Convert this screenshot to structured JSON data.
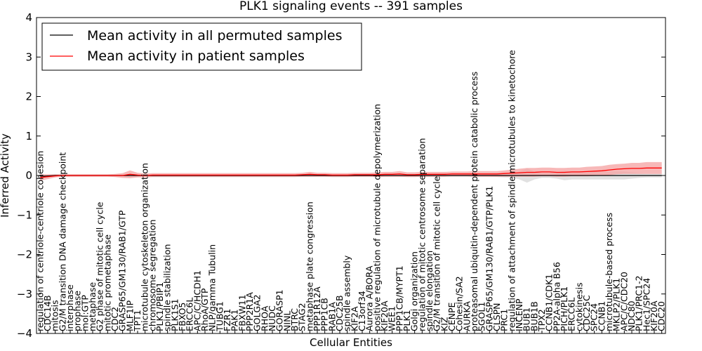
{
  "chart_data": {
    "type": "line",
    "title": "PLK1 signaling events -- 391 samples",
    "xlabel": "Cellular Entities",
    "ylabel": "Inferred Activity",
    "ylim": [
      -4,
      4
    ],
    "yticks": [
      "4",
      "3",
      "2",
      "1",
      "0",
      "−1",
      "−2",
      "−3",
      "−4"
    ],
    "ytick_values": [
      4,
      3,
      2,
      1,
      0,
      -1,
      -2,
      -3,
      -4
    ],
    "grid": false,
    "legend_position": "top-left",
    "categories": [
      "regulation of centriole-centriole cohesion",
      "CDC14B",
      "mitosis",
      "G2/M transition DNA damage checkpoint",
      "interphase",
      "prophase",
      "mol:GTP",
      "metaphase",
      "G2 phase of mitotic cell cycle",
      "mitotic prometaphase",
      "CDC2",
      "GRASP65/GM130/RAB1/GTP",
      "MLF1IP",
      "TPT1",
      "microtubule cytoskeleton organization",
      "chromosome segregation",
      "PLK1/PBIP1",
      "spindle stabilization",
      "PLK1S1",
      "FBXO5",
      "ERCC6L",
      "APC/C/HCDH1",
      "RhoA/GTP",
      "NLP/gamma Tubulin",
      "TUBG1",
      "FZR1",
      "PAK1",
      "FBXW11",
      "PPP2R1A",
      "GOLGA2",
      "RHOA",
      "NUDC",
      "GORASP1",
      "NINL",
      "BTRC",
      "STAG2",
      "metaphase plate congression",
      "PPP1R12A",
      "PPP1CB",
      "RAB1A",
      "CDC25B",
      "spindle assembly",
      "KIF2A",
      "C13orf34",
      "Aurora A/BORA",
      "positive regulation of microtubule depolymerization",
      "KIF20A",
      "WEE1",
      "PPP1CB/MYPT1",
      "PLK1",
      "Golgi organization",
      "regulation of mitotic centrosome separation",
      "spindle elongation",
      "G2/M transition of mitotic cell cycle",
      "KIZ",
      "CENPE",
      "Cohesin/SA2",
      "AURKA",
      "proteasomal ubiquitin-dependent protein catabolic process",
      "SGOL1",
      "GRASP65/GM130/RAB1/GTP/PLK1",
      "CLSPN",
      "PRC1",
      "regulation of attachment of spindle microtubules to kinetochore",
      "INCENP",
      "BUB1",
      "BUB1B",
      "TPX2",
      "CCNB1/CDK1",
      "PP2A-alpha B56",
      "PICH/PLK1",
      "ERCC6L",
      "cytokinesis",
      "CDC25C",
      "SPC24",
      "CCNB1",
      "microtubule-based process",
      "MKLP2/PLK1",
      "APC/C/CDC20",
      "NDC80",
      "PLK1/PRC1-2",
      "Hec1/SPC24",
      "KIF20A",
      "CDC20"
    ],
    "series": [
      {
        "name": "Mean activity in all permuted samples",
        "color": "#000000",
        "values": [
          -0.02,
          -0.01,
          0,
          0,
          0,
          0,
          0,
          0,
          0,
          0,
          0,
          0,
          0,
          0,
          0,
          0,
          0,
          0,
          0,
          0,
          0,
          0,
          0,
          0,
          0,
          0,
          0,
          0,
          0,
          0,
          0,
          0,
          0,
          0,
          0,
          0,
          0,
          0,
          0,
          0,
          0,
          0,
          0,
          0,
          0,
          0,
          0,
          0,
          0,
          0,
          0,
          0,
          0,
          0,
          0,
          0,
          0,
          0,
          0,
          0,
          0,
          0,
          0,
          0,
          0,
          0,
          0,
          0,
          0,
          0,
          0,
          0,
          0,
          0,
          0,
          0,
          0,
          0,
          0,
          0,
          0,
          0,
          0,
          0
        ],
        "band": [
          0.04,
          0.03,
          0.02,
          0.02,
          0.02,
          0.02,
          0.02,
          0.02,
          0.02,
          0.02,
          0.03,
          0.02,
          0.02,
          0.02,
          0.03,
          0.03,
          0.03,
          0.03,
          0.03,
          0.03,
          0.03,
          0.03,
          0.03,
          0.03,
          0.03,
          0.03,
          0.03,
          0.03,
          0.03,
          0.03,
          0.03,
          0.03,
          0.03,
          0.03,
          0.03,
          0.03,
          0.03,
          0.03,
          0.03,
          0.03,
          0.03,
          0.03,
          0.03,
          0.03,
          0.03,
          0.03,
          0.03,
          0.03,
          0.03,
          0.03,
          0.03,
          0.03,
          0.03,
          0.03,
          0.03,
          0.03,
          0.03,
          0.03,
          0.03,
          0.03,
          0.03,
          0.04,
          0.05,
          0.05,
          0.1,
          0.18,
          0.1,
          0.06,
          0.06,
          0.08,
          0.12,
          0.1,
          0.1,
          0.1,
          0.1,
          0.1,
          0.1,
          0.1,
          0.1,
          0.08,
          0.06,
          0.05,
          0.05,
          0.05
        ]
      },
      {
        "name": "Mean activity in patient samples",
        "color": "#ff0000",
        "fill": "#f4a0a0",
        "values": [
          -0.05,
          -0.03,
          -0.01,
          0,
          0,
          0,
          0,
          0,
          0,
          0,
          0,
          0,
          0.03,
          0.01,
          0,
          0.01,
          0.01,
          0.01,
          0.01,
          0.01,
          0.01,
          0.01,
          0.01,
          0.01,
          0.01,
          0.01,
          0.01,
          0.01,
          0.01,
          0.01,
          0.01,
          0.01,
          0.01,
          0.01,
          0.01,
          0.02,
          0.03,
          0.02,
          0.02,
          0.01,
          0.01,
          0.01,
          0.02,
          0.02,
          0.02,
          0.02,
          0.03,
          0.03,
          0.04,
          0.02,
          0.02,
          0.03,
          0.03,
          0.03,
          0.03,
          0.04,
          0.04,
          0.04,
          0.04,
          0.04,
          0.04,
          0.04,
          0.05,
          0.06,
          0.07,
          0.08,
          0.08,
          0.09,
          0.09,
          0.08,
          0.08,
          0.09,
          0.09,
          0.1,
          0.11,
          0.12,
          0.14,
          0.16,
          0.17,
          0.18,
          0.18,
          0.19,
          0.19,
          0.19
        ],
        "band": [
          0.08,
          0.06,
          0.04,
          0.03,
          0.03,
          0.03,
          0.03,
          0.03,
          0.03,
          0.03,
          0.04,
          0.06,
          0.1,
          0.06,
          0.05,
          0.05,
          0.05,
          0.05,
          0.05,
          0.05,
          0.05,
          0.05,
          0.05,
          0.05,
          0.05,
          0.05,
          0.05,
          0.05,
          0.05,
          0.05,
          0.05,
          0.05,
          0.05,
          0.05,
          0.05,
          0.05,
          0.06,
          0.05,
          0.05,
          0.05,
          0.05,
          0.05,
          0.05,
          0.05,
          0.05,
          0.06,
          0.06,
          0.06,
          0.07,
          0.06,
          0.06,
          0.06,
          0.06,
          0.06,
          0.06,
          0.06,
          0.06,
          0.06,
          0.07,
          0.07,
          0.07,
          0.07,
          0.08,
          0.09,
          0.1,
          0.11,
          0.11,
          0.11,
          0.11,
          0.11,
          0.11,
          0.11,
          0.11,
          0.12,
          0.12,
          0.12,
          0.13,
          0.13,
          0.13,
          0.14,
          0.14,
          0.15,
          0.15,
          0.15
        ]
      }
    ]
  }
}
